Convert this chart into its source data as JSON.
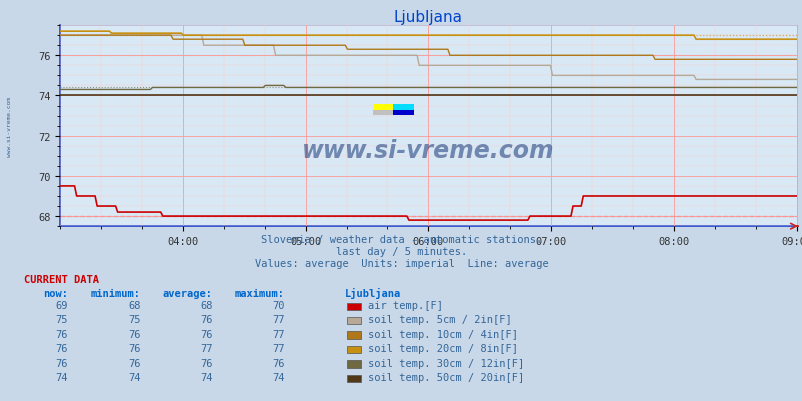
{
  "title": "Ljubljana",
  "subtitle1": "Slovenia / weather data - automatic stations.",
  "subtitle2": "last day / 5 minutes.",
  "subtitle3": "Values: average  Units: imperial  Line: average",
  "bg_color": "#c8d8e8",
  "plot_bg_color": "#d8e8f4",
  "title_color": "#0044cc",
  "text_color": "#336699",
  "xlim": [
    0,
    360
  ],
  "ylim": [
    67.5,
    77.5
  ],
  "yticks": [
    68,
    70,
    72,
    74,
    76
  ],
  "xtick_labels": [
    "04:00",
    "05:00",
    "06:00",
    "07:00",
    "08:00",
    "09:00"
  ],
  "xtick_positions": [
    60,
    120,
    180,
    240,
    300,
    360
  ],
  "grid_color_major": "#ff9999",
  "grid_color_minor": "#ffcccc",
  "grid_color_major_y": "#ff9999",
  "watermark": "www.si-vreme.com",
  "series": {
    "air_temp": {
      "color": "#cc0000",
      "avg_color": "#ff6666",
      "label": "air temp.[F]",
      "now": 69,
      "min": 68,
      "avg": 68,
      "max": 70
    },
    "soil_5cm": {
      "color": "#b8a898",
      "label": "soil temp. 5cm / 2in[F]",
      "now": 75,
      "min": 75,
      "avg": 76,
      "max": 77
    },
    "soil_10cm": {
      "color": "#b07818",
      "label": "soil temp. 10cm / 4in[F]",
      "now": 76,
      "min": 76,
      "avg": 76,
      "max": 77
    },
    "soil_20cm": {
      "color": "#c89010",
      "label": "soil temp. 20cm / 8in[F]",
      "now": 76,
      "min": 76,
      "avg": 77,
      "max": 77
    },
    "soil_30cm": {
      "color": "#706840",
      "label": "soil temp. 30cm / 12in[F]",
      "now": 76,
      "min": 76,
      "avg": 76,
      "max": 76
    },
    "soil_50cm": {
      "color": "#503818",
      "label": "soil temp. 50cm / 20in[F]",
      "now": 74,
      "min": 74,
      "avg": 74,
      "max": 74
    }
  },
  "table_headers": [
    "now:",
    "minimum:",
    "average:",
    "maximum:",
    "Ljubljana"
  ],
  "table_header_color": "#0066cc",
  "table_value_color": "#336699",
  "table_label_color": "#336699",
  "current_data_color": "#cc0000",
  "left_label": "www.si-vreme.com"
}
